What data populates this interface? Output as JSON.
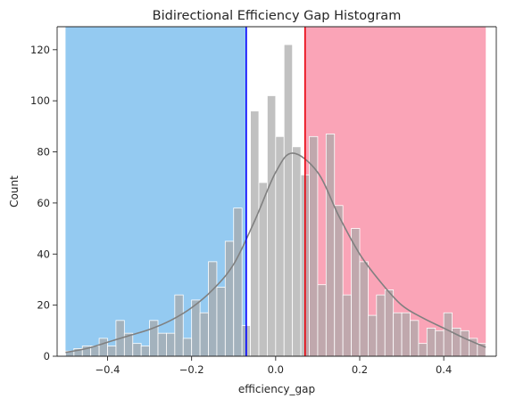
{
  "chart_data": {
    "type": "bar",
    "title": "Bidirectional Efficiency Gap Histogram",
    "xlabel": "efficiency_gap",
    "ylabel": "Count",
    "xlim": [
      -0.52,
      0.525
    ],
    "ylim": [
      0,
      129
    ],
    "xticks": [
      -0.4,
      -0.2,
      0.0,
      0.2,
      0.4
    ],
    "xtick_labels": [
      "−0.4",
      "−0.2",
      "0.0",
      "0.2",
      "0.4"
    ],
    "yticks": [
      0,
      20,
      40,
      60,
      80,
      100,
      120
    ],
    "ytick_labels": [
      "0",
      "20",
      "40",
      "60",
      "80",
      "100",
      "120"
    ],
    "grid": false,
    "bins": {
      "start": -0.5,
      "width": 0.02,
      "counts": [
        2,
        3,
        4,
        4,
        7,
        4,
        14,
        9,
        5,
        4,
        14,
        9,
        9,
        24,
        7,
        22,
        17,
        37,
        27,
        45,
        58,
        12,
        96,
        68,
        102,
        86,
        122,
        82,
        71,
        86,
        28,
        87,
        59,
        24,
        50,
        37,
        16,
        24,
        26,
        17,
        17,
        14,
        5,
        11,
        10,
        17,
        11,
        10,
        7,
        5
      ]
    },
    "kde": {
      "x": [
        -0.5,
        -0.45,
        -0.4,
        -0.35,
        -0.3,
        -0.25,
        -0.2,
        -0.15,
        -0.1,
        -0.05,
        0.0,
        0.04,
        0.1,
        0.15,
        0.2,
        0.25,
        0.3,
        0.35,
        0.4,
        0.45,
        0.5
      ],
      "y": [
        1.5,
        3,
        5.5,
        8,
        10.5,
        14,
        19,
        26,
        36,
        53,
        72,
        79.5,
        72,
        55,
        40,
        29,
        20,
        15,
        11,
        7,
        3.5
      ]
    },
    "vlines": [
      {
        "x": -0.07,
        "color": "#0000ff"
      },
      {
        "x": 0.07,
        "color": "#e8000b"
      }
    ],
    "shaded_regions": [
      {
        "from": -0.5,
        "to": -0.07,
        "color": "#5aaeea"
      },
      {
        "from": 0.07,
        "to": 0.5,
        "color": "#f77390"
      }
    ],
    "colors": {
      "bars": "#a9a9a9",
      "bar_edge": "#ffffff",
      "kde": "#808080",
      "axes": "#262626"
    }
  }
}
